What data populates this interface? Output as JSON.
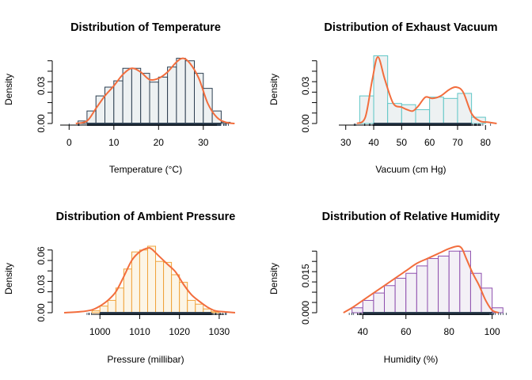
{
  "chart_data": [
    {
      "type": "histogram",
      "title": "Distribution of Temperature",
      "xlabel": "Temperature (°C)",
      "ylabel": "Density",
      "xlim": [
        -2,
        38
      ],
      "ylim": [
        0,
        0.053
      ],
      "xticks": [
        0,
        10,
        20,
        30
      ],
      "yticks": [
        0.0,
        0.03
      ],
      "ytick_labels": [
        "0.00",
        "0.03"
      ],
      "bin_edges": [
        2,
        4,
        6,
        8,
        10,
        12,
        14,
        16,
        18,
        20,
        22,
        24,
        26,
        28,
        30,
        32,
        34,
        36
      ],
      "bin_values": [
        0.002,
        0.01,
        0.022,
        0.029,
        0.034,
        0.044,
        0.044,
        0.04,
        0.033,
        0.037,
        0.045,
        0.052,
        0.05,
        0.04,
        0.028,
        0.01,
        0.001
      ],
      "density_x": [
        1.5,
        4,
        6,
        8,
        10,
        12,
        14,
        16,
        18,
        20,
        22,
        24,
        25.5,
        27,
        29,
        31,
        33,
        35,
        37
      ],
      "density_y": [
        0.0,
        0.002,
        0.012,
        0.022,
        0.03,
        0.039,
        0.044,
        0.041,
        0.035,
        0.036,
        0.041,
        0.049,
        0.052,
        0.048,
        0.036,
        0.016,
        0.005,
        0.001,
        0.0
      ],
      "colors": {
        "bar_fill": "#edf1f2",
        "bar_stroke": "#2c3e50",
        "density": "#f26d3d",
        "rug": "#2c3e50"
      }
    },
    {
      "type": "histogram",
      "title": "Distribution of Exhaust Vacuum",
      "xlabel": "Vacuum (cm Hg)",
      "ylabel": "Density",
      "xlim": [
        23,
        87
      ],
      "ylim": [
        0,
        0.053
      ],
      "xticks": [
        30,
        40,
        50,
        60,
        70,
        80
      ],
      "yticks": [
        0.0,
        0.03
      ],
      "ytick_labels": [
        "0.00",
        "0.03"
      ],
      "bin_edges": [
        35,
        40,
        45,
        50,
        55,
        60,
        65,
        70,
        75,
        80
      ],
      "bin_values": [
        0.022,
        0.054,
        0.016,
        0.015,
        0.011,
        0.021,
        0.02,
        0.024,
        0.005
      ],
      "density_x": [
        34,
        37,
        39.5,
        41.5,
        44,
        47,
        50,
        52,
        54,
        56,
        58.5,
        61,
        64,
        67,
        69.5,
        72,
        75,
        78,
        81,
        84
      ],
      "density_y": [
        0.0,
        0.005,
        0.035,
        0.053,
        0.035,
        0.016,
        0.013,
        0.011,
        0.01,
        0.014,
        0.021,
        0.02,
        0.022,
        0.027,
        0.029,
        0.025,
        0.008,
        0.002,
        0.001,
        0.0
      ],
      "colors": {
        "bar_fill": "#edf1f2",
        "bar_stroke": "#5ec6c6",
        "density": "#f26d3d",
        "rug": "#2c3e50"
      }
    },
    {
      "type": "histogram",
      "title": "Distribution of Ambient Pressure",
      "xlabel": "Pressure (millibar)",
      "ylabel": "Density",
      "xlim": [
        990,
        1035
      ],
      "ylim": [
        0,
        0.07
      ],
      "xticks": [
        1000,
        1010,
        1020,
        1030
      ],
      "yticks": [
        0.0,
        0.03,
        0.06
      ],
      "ytick_labels": [
        "0.00",
        "0.03",
        "0.06"
      ],
      "bin_edges": [
        998,
        1000,
        1002,
        1004,
        1006,
        1008,
        1010,
        1012,
        1014,
        1016,
        1018,
        1020,
        1022,
        1024,
        1026,
        1028,
        1030
      ],
      "bin_values": [
        0.002,
        0.007,
        0.013,
        0.026,
        0.046,
        0.064,
        0.066,
        0.07,
        0.054,
        0.053,
        0.04,
        0.032,
        0.013,
        0.009,
        0.004,
        0.001
      ],
      "density_x": [
        991,
        995,
        998,
        1000,
        1002,
        1004,
        1006,
        1008,
        1010,
        1012,
        1013,
        1015,
        1017,
        1019,
        1021,
        1023,
        1025,
        1027,
        1029,
        1031,
        1034
      ],
      "density_y": [
        0.0,
        0.001,
        0.003,
        0.007,
        0.013,
        0.022,
        0.038,
        0.055,
        0.064,
        0.068,
        0.067,
        0.059,
        0.051,
        0.043,
        0.03,
        0.019,
        0.012,
        0.006,
        0.002,
        0.001,
        0.0
      ],
      "colors": {
        "bar_fill": "#fcf5e6",
        "bar_stroke": "#f0a33a",
        "density": "#f26d3d",
        "rug": "#2c3e50"
      }
    },
    {
      "type": "histogram",
      "title": "Distribution of Relative Humidity",
      "xlabel": "Humidity (%)",
      "ylabel": "Density",
      "xlim": [
        23,
        106
      ],
      "ylim": [
        0,
        0.027
      ],
      "xticks": [
        40,
        60,
        80,
        100
      ],
      "yticks": [
        0.0,
        0.015
      ],
      "ytick_labels": [
        "0.000",
        "0.015"
      ],
      "bin_edges": [
        35,
        40,
        45,
        50,
        55,
        60,
        65,
        70,
        75,
        80,
        85,
        90,
        95,
        100,
        105
      ],
      "bin_values": [
        0.002,
        0.005,
        0.008,
        0.011,
        0.014,
        0.016,
        0.019,
        0.022,
        0.023,
        0.025,
        0.025,
        0.016,
        0.01,
        0.002
      ],
      "density_x": [
        31,
        35,
        40,
        45,
        50,
        55,
        60,
        65,
        70,
        75,
        80,
        84,
        86,
        88,
        91,
        94,
        97,
        100,
        103
      ],
      "density_y": [
        0.0,
        0.002,
        0.005,
        0.008,
        0.011,
        0.014,
        0.017,
        0.02,
        0.022,
        0.024,
        0.026,
        0.027,
        0.026,
        0.022,
        0.016,
        0.011,
        0.005,
        0.001,
        0.0
      ],
      "colors": {
        "bar_fill": "#f3f0f6",
        "bar_stroke": "#8e4fae",
        "density": "#f26d3d",
        "rug": "#2c3e50"
      }
    }
  ]
}
